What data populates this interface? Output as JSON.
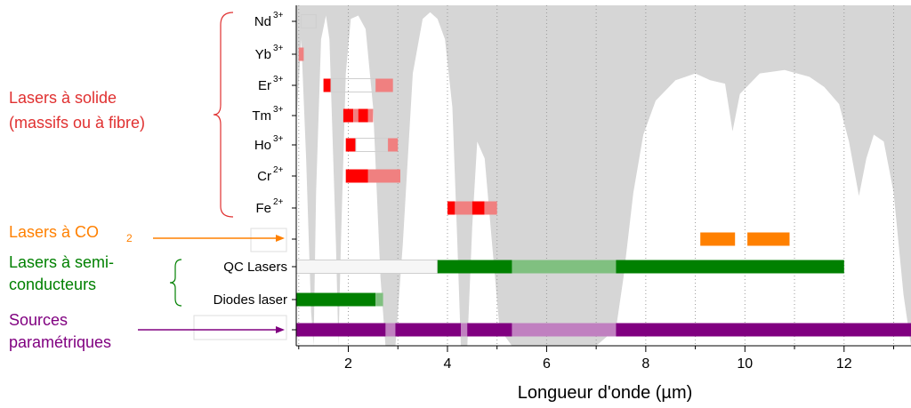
{
  "chart_data": {
    "type": "range-bar",
    "xlabel": "Longueur d'onde (µm)",
    "xlim": [
      0.95,
      13.35
    ],
    "xticks": [
      2,
      4,
      6,
      8,
      10,
      12
    ],
    "xtick_labels": [
      "2",
      "4",
      "6",
      "8",
      "10",
      "12"
    ],
    "grid": "vertical dotted",
    "colors": {
      "solid_primary": "#ff0000",
      "solid_secondary": "#f08080",
      "co2": "#ff8000",
      "semiconductor": "#008000",
      "semiconductor_light": "#80c080",
      "parametric": "#800080",
      "parametric_light": "#c080c0",
      "absorption": "#d6d6d6",
      "bracket": "#e03030"
    },
    "rows": [
      {
        "label": "Nd",
        "sup": "3+",
        "bars": [
          {
            "start": 1.05,
            "end": 1.35,
            "color": "#f08080",
            "outline": true
          }
        ]
      },
      {
        "label": "Yb",
        "sup": "3+",
        "bars": [
          {
            "start": 1.0,
            "end": 1.1,
            "color": "#f08080"
          }
        ]
      },
      {
        "label": "Er",
        "sup": "3+",
        "bars": [
          {
            "start": 1.5,
            "end": 1.65,
            "color": "#ff0000"
          },
          {
            "start": 1.65,
            "end": 2.55,
            "color": "#f08080",
            "outline": true
          },
          {
            "start": 2.55,
            "end": 2.9,
            "color": "#f08080"
          }
        ]
      },
      {
        "label": "Tm",
        "sup": "3+",
        "bars": [
          {
            "start": 1.9,
            "end": 2.1,
            "color": "#ff0000"
          },
          {
            "start": 2.1,
            "end": 2.2,
            "color": "#f08080"
          },
          {
            "start": 2.2,
            "end": 2.4,
            "color": "#ff0000"
          },
          {
            "start": 2.4,
            "end": 2.5,
            "color": "#f08080"
          }
        ]
      },
      {
        "label": "Ho",
        "sup": "3+",
        "bars": [
          {
            "start": 1.95,
            "end": 2.15,
            "color": "#ff0000"
          },
          {
            "start": 2.15,
            "end": 2.8,
            "color": "#f08080",
            "outline": true
          },
          {
            "start": 2.8,
            "end": 3.0,
            "color": "#f08080"
          }
        ]
      },
      {
        "label": "Cr",
        "sup": "2+",
        "bars": [
          {
            "start": 1.95,
            "end": 2.4,
            "color": "#ff0000"
          },
          {
            "start": 2.4,
            "end": 3.05,
            "color": "#f08080"
          }
        ]
      },
      {
        "label": "Fe",
        "sup": "2+",
        "bars": [
          {
            "start": 4.0,
            "end": 4.15,
            "color": "#ff0000"
          },
          {
            "start": 4.15,
            "end": 4.5,
            "color": "#f08080"
          },
          {
            "start": 4.5,
            "end": 4.75,
            "color": "#ff0000"
          },
          {
            "start": 4.75,
            "end": 5.0,
            "color": "#f08080"
          }
        ]
      },
      {
        "label": "",
        "sup": "",
        "bars": [
          {
            "start": 9.1,
            "end": 9.8,
            "color": "#ff8000"
          },
          {
            "start": 10.05,
            "end": 10.9,
            "color": "#ff8000"
          }
        ]
      },
      {
        "label": "QC Lasers",
        "sup": "",
        "bars": [
          {
            "start": 0.95,
            "end": 3.8,
            "color": "#f4f4f4",
            "outline": true
          },
          {
            "start": 3.8,
            "end": 12.0,
            "color": "#008000"
          }
        ]
      },
      {
        "label": "Diodes laser",
        "sup": "",
        "bars": [
          {
            "start": 0.95,
            "end": 2.55,
            "color": "#008000"
          },
          {
            "start": 2.55,
            "end": 2.7,
            "color": "#80c080"
          }
        ]
      },
      {
        "label": "",
        "sup": "",
        "bars": [
          {
            "start": 0.95,
            "end": 13.35,
            "color": "#800080"
          }
        ]
      }
    ],
    "absorption_transmission": [
      [
        0.95,
        0.65
      ],
      [
        1.05,
        0.9
      ],
      [
        1.15,
        0.55
      ],
      [
        1.25,
        0.1
      ],
      [
        1.3,
        0.0
      ],
      [
        1.35,
        0.45
      ],
      [
        1.45,
        0.9
      ],
      [
        1.55,
        0.97
      ],
      [
        1.62,
        0.9
      ],
      [
        1.75,
        0.3
      ],
      [
        1.8,
        0.0
      ],
      [
        1.85,
        0.3
      ],
      [
        1.95,
        0.8
      ],
      [
        2.05,
        0.96
      ],
      [
        2.2,
        0.97
      ],
      [
        2.35,
        0.93
      ],
      [
        2.5,
        0.7
      ],
      [
        2.65,
        0.2
      ],
      [
        2.75,
        0.0
      ],
      [
        2.95,
        0.0
      ],
      [
        3.1,
        0.3
      ],
      [
        3.3,
        0.8
      ],
      [
        3.5,
        0.96
      ],
      [
        3.65,
        0.98
      ],
      [
        3.8,
        0.96
      ],
      [
        3.95,
        0.9
      ],
      [
        4.1,
        0.7
      ],
      [
        4.2,
        0.3
      ],
      [
        4.27,
        0.0
      ],
      [
        4.4,
        0.0
      ],
      [
        4.5,
        0.35
      ],
      [
        4.6,
        0.6
      ],
      [
        4.75,
        0.55
      ],
      [
        4.9,
        0.3
      ],
      [
        5.05,
        0.05
      ],
      [
        5.3,
        0.0
      ],
      [
        7.0,
        0.0
      ],
      [
        7.4,
        0.05
      ],
      [
        7.55,
        0.2
      ],
      [
        7.75,
        0.45
      ],
      [
        7.95,
        0.62
      ],
      [
        8.2,
        0.72
      ],
      [
        8.6,
        0.78
      ],
      [
        9.0,
        0.8
      ],
      [
        9.3,
        0.78
      ],
      [
        9.6,
        0.77
      ],
      [
        9.75,
        0.63
      ],
      [
        9.9,
        0.74
      ],
      [
        10.3,
        0.8
      ],
      [
        10.8,
        0.81
      ],
      [
        11.3,
        0.79
      ],
      [
        11.6,
        0.76
      ],
      [
        11.9,
        0.71
      ],
      [
        12.1,
        0.6
      ],
      [
        12.3,
        0.44
      ],
      [
        12.45,
        0.55
      ],
      [
        12.6,
        0.62
      ],
      [
        12.8,
        0.6
      ],
      [
        13.0,
        0.45
      ],
      [
        13.2,
        0.15
      ],
      [
        13.35,
        0.0
      ]
    ]
  },
  "categories": [
    {
      "key": "solid",
      "lines": [
        "Lasers à solide",
        "(massifs ou à fibre)"
      ],
      "color": "#e03030"
    },
    {
      "key": "co2",
      "lines": [
        "Lasers à CO"
      ],
      "sub": "2",
      "color": "#ff8000"
    },
    {
      "key": "semiconductor",
      "lines": [
        "Lasers à semi-",
        "conducteurs"
      ],
      "color": "#008000"
    },
    {
      "key": "parametric",
      "lines": [
        "Sources",
        "paramétriques"
      ],
      "color": "#800080"
    }
  ]
}
